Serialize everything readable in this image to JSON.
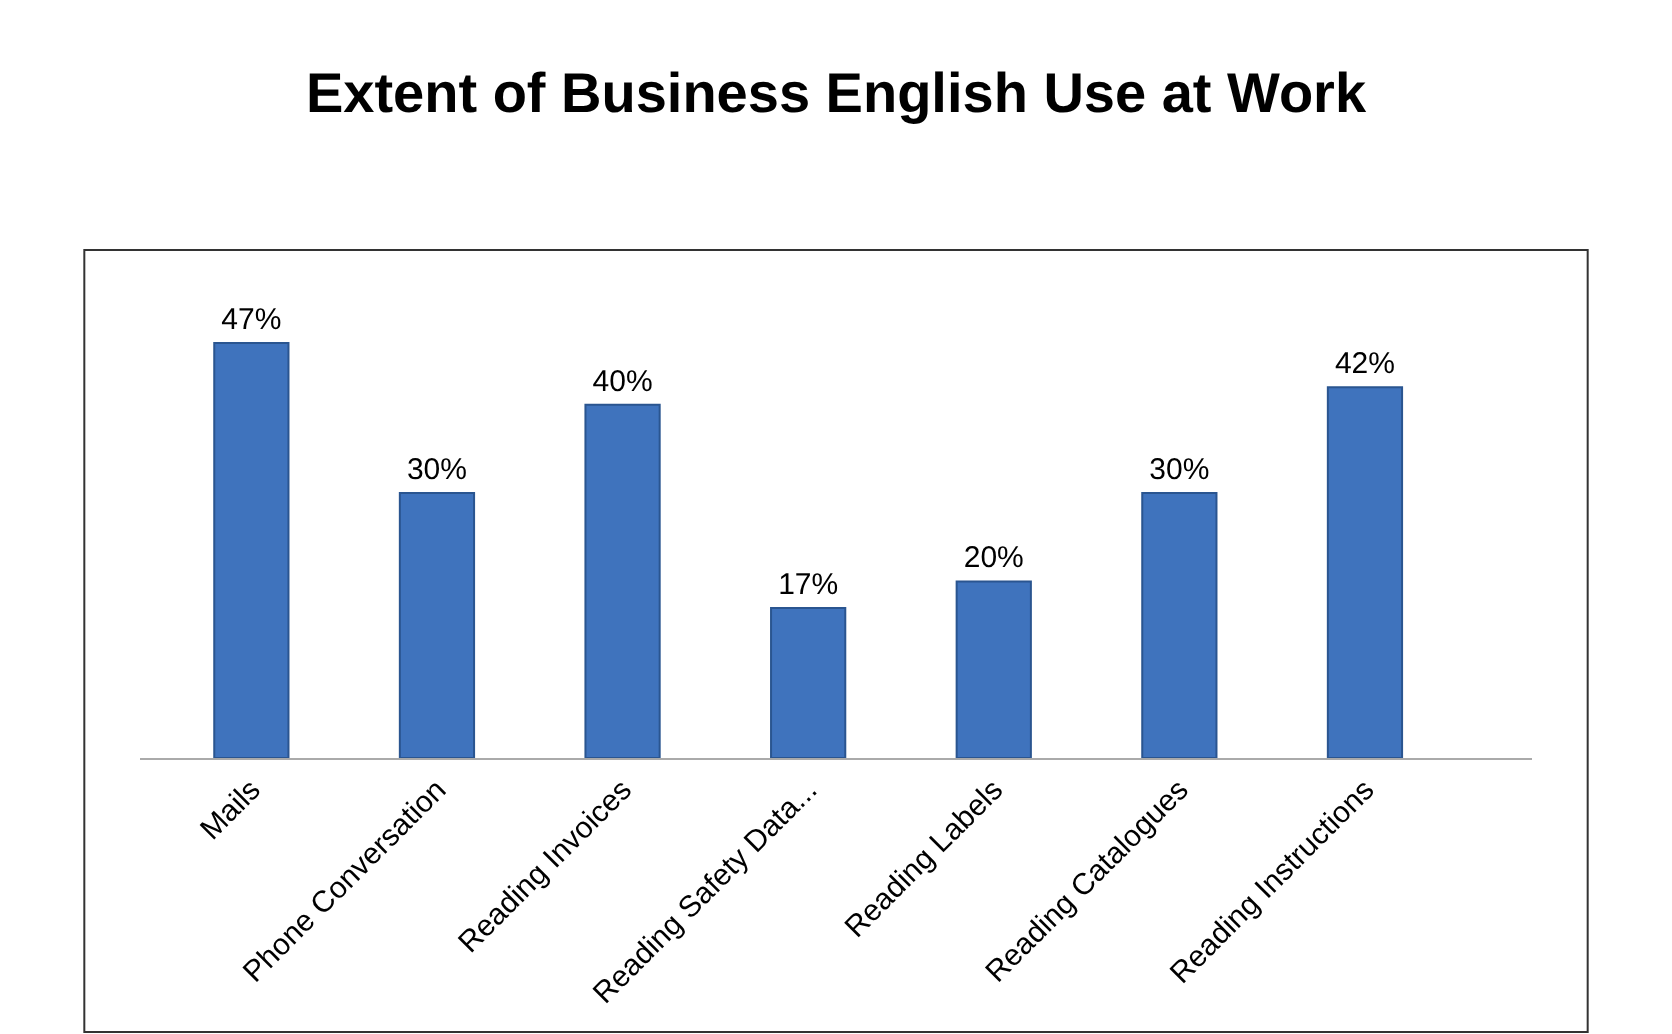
{
  "chart_data": {
    "type": "bar",
    "title": "Extent of Business English Use at Work",
    "categories": [
      "Mails",
      "Phone Conversation",
      "Reading Invoices",
      "Reading Safety Data...",
      "Reading Labels",
      "Reading Catalogues",
      "Reading Instructions"
    ],
    "values": [
      47,
      30,
      40,
      17,
      20,
      30,
      42
    ],
    "value_labels": [
      "47%",
      "30%",
      "40%",
      "17%",
      "20%",
      "30%",
      "42%"
    ],
    "color": "#3f73bd"
  }
}
